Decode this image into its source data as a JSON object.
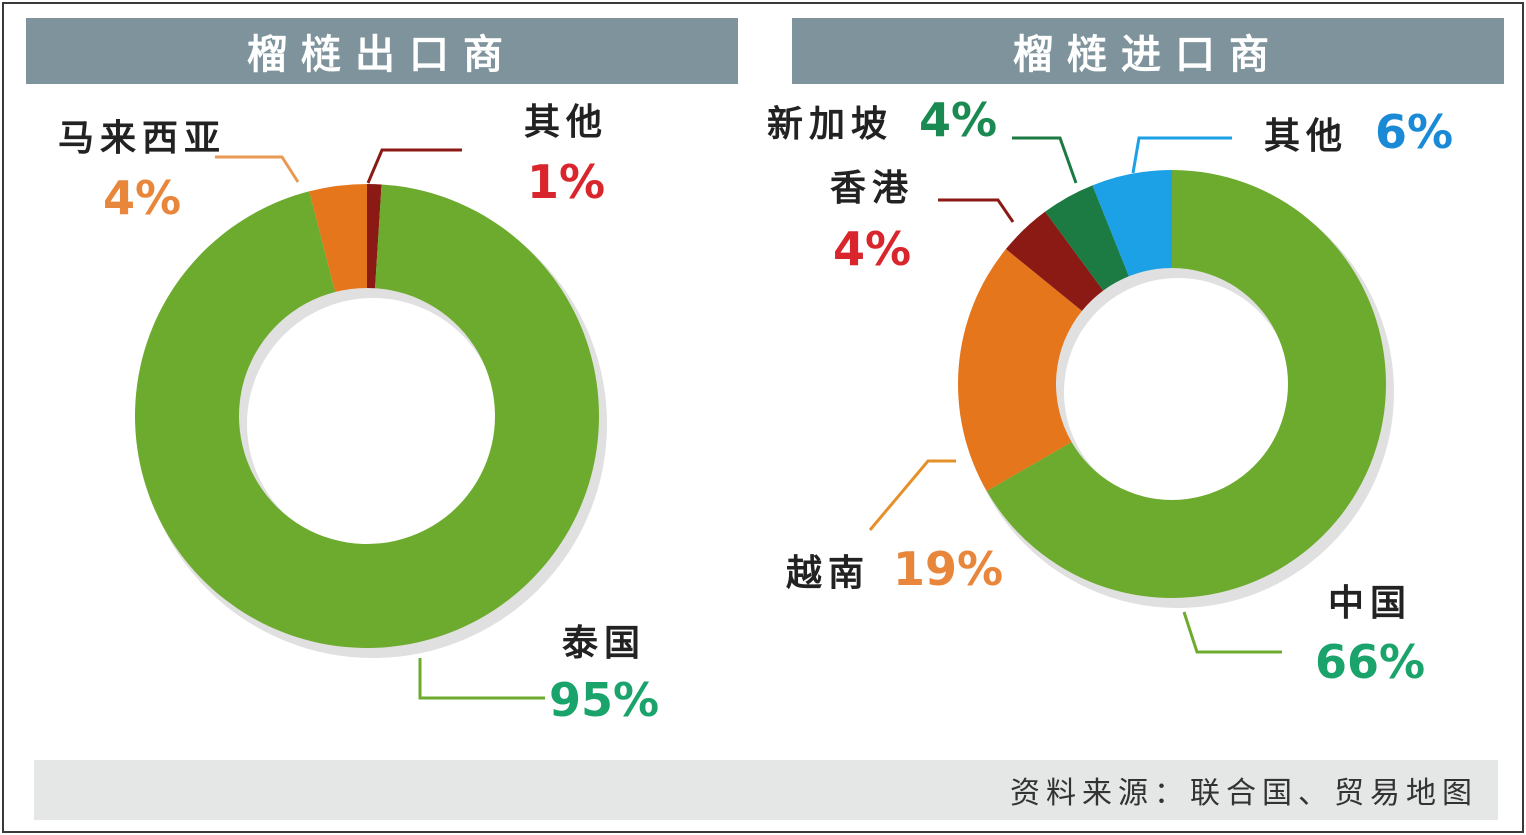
{
  "chart_data": [
    {
      "type": "pie",
      "title": "榴梿出口商",
      "slices": [
        {
          "label": "泰国",
          "value": 95,
          "value_label": "95%",
          "color": "#6dab2e",
          "text_color": "#1aa36a"
        },
        {
          "label": "马来西亚",
          "value": 4,
          "value_label": "4%",
          "color": "#e6761b",
          "text_color": "#e8873c"
        },
        {
          "label": "其他",
          "value": 1,
          "value_label": "1%",
          "color": "#8b1a14",
          "text_color": "#d9262c"
        }
      ]
    },
    {
      "type": "pie",
      "title": "榴梿进口商",
      "slices": [
        {
          "label": "中国",
          "value": 66,
          "value_label": "66%",
          "color": "#6dab2e",
          "text_color": "#1aa36a"
        },
        {
          "label": "越南",
          "value": 19,
          "value_label": "19%",
          "color": "#e6761b",
          "text_color": "#e8873c"
        },
        {
          "label": "香港",
          "value": 4,
          "value_label": "4%",
          "color": "#8b1a14",
          "text_color": "#d9262c"
        },
        {
          "label": "新加坡",
          "value": 4,
          "value_label": "4%",
          "color": "#1c7a43",
          "text_color": "#1a8a52"
        },
        {
          "label": "其他",
          "value": 6,
          "value_label": "6%",
          "color": "#1ca0e6",
          "text_color": "#1a8ad6"
        }
      ]
    }
  ],
  "source_note": "资料来源：联合国、贸易地图"
}
